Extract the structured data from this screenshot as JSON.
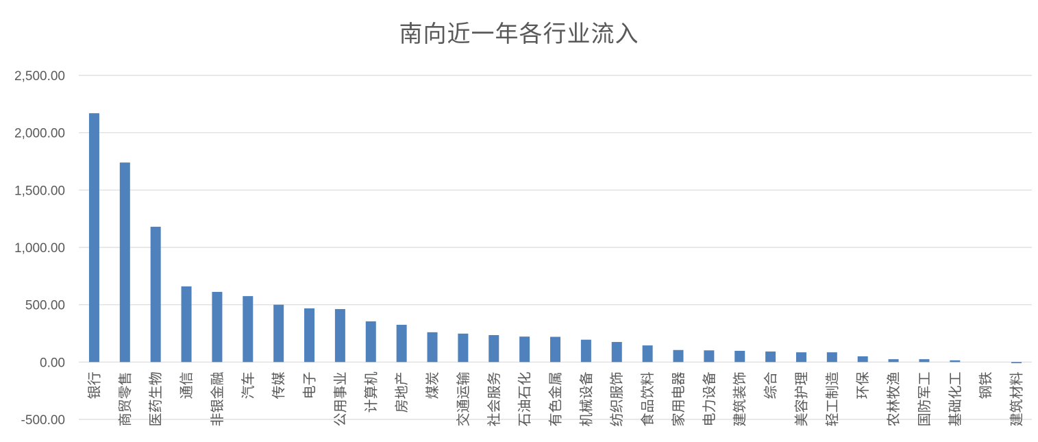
{
  "chart_data": {
    "type": "bar",
    "title": "南向近一年各行业流入",
    "xlabel": "",
    "ylabel": "",
    "ylim": [
      -500,
      2500
    ],
    "yticks": [
      -500,
      0,
      500,
      1000,
      1500,
      2000,
      2500
    ],
    "ytick_labels": [
      "-500.00",
      "0.00",
      "500.00",
      "1,000.00",
      "1,500.00",
      "2,000.00",
      "2,500.00"
    ],
    "grid": true,
    "legend": "none",
    "bar_color": "#4f81bd",
    "categories": [
      "银行",
      "商贸零售",
      "医药生物",
      "通信",
      "非银金融",
      "汽车",
      "传媒",
      "电子",
      "公用事业",
      "计算机",
      "房地产",
      "煤炭",
      "交通运输",
      "社会服务",
      "石油石化",
      "有色金属",
      "机械设备",
      "纺织服饰",
      "食品饮料",
      "家用电器",
      "电力设备",
      "建筑装饰",
      "综合",
      "美容护理",
      "轻工制造",
      "环保",
      "农林牧渔",
      "国防军工",
      "基础化工",
      "钢铁",
      "建筑材料"
    ],
    "values": [
      2170,
      1740,
      1180,
      660,
      612,
      575,
      500,
      468,
      462,
      355,
      325,
      260,
      248,
      235,
      222,
      220,
      195,
      175,
      145,
      105,
      102,
      98,
      92,
      85,
      85,
      50,
      25,
      25,
      15,
      0,
      -10
    ]
  }
}
